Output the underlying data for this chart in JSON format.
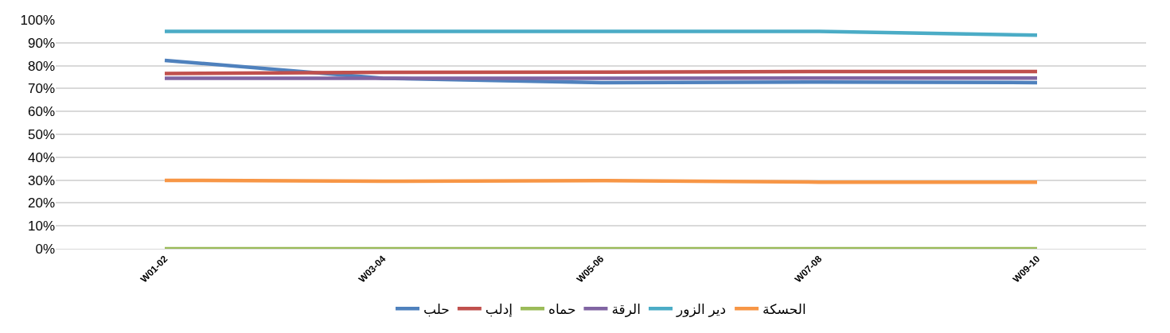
{
  "chart_data": {
    "type": "line",
    "categories": [
      "W01-02",
      "W03-04",
      "W05-06",
      "W07-08",
      "W09-10"
    ],
    "series": [
      {
        "name": "حلب",
        "color": "#4f81bd",
        "values": [
          82.3,
          74.5,
          72.6,
          72.8,
          72.6
        ]
      },
      {
        "name": "إدلب",
        "color": "#c0504d",
        "values": [
          76.6,
          77.1,
          77.2,
          77.4,
          77.4
        ]
      },
      {
        "name": "حماه",
        "color": "#9bbb59",
        "values": [
          0,
          0,
          0,
          0,
          0
        ]
      },
      {
        "name": "الرقة",
        "color": "#8064a2",
        "values": [
          74.5,
          74.5,
          74.5,
          74.6,
          74.6
        ]
      },
      {
        "name": "دير الزور",
        "color": "#4bacc6",
        "values": [
          95,
          95,
          95,
          95,
          93.3
        ]
      },
      {
        "name": "الحسكة",
        "color": "#f79646",
        "values": [
          29.9,
          29.5,
          29.8,
          29.1,
          29.1
        ]
      }
    ],
    "ylim": [
      0,
      100
    ],
    "yticks": [
      {
        "value": 0,
        "label": "0%"
      },
      {
        "value": 10,
        "label": "10%"
      },
      {
        "value": 20,
        "label": "20%"
      },
      {
        "value": 30,
        "label": "30%"
      },
      {
        "value": 40,
        "label": "40%"
      },
      {
        "value": 50,
        "label": "50%"
      },
      {
        "value": 60,
        "label": "60%"
      },
      {
        "value": 70,
        "label": "70%"
      },
      {
        "value": 80,
        "label": "80%"
      },
      {
        "value": 90,
        "label": "90%"
      },
      {
        "value": 100,
        "label": "100%"
      }
    ],
    "grid": "y",
    "legend": "bottom",
    "marker": "none",
    "line_style": "solid"
  }
}
